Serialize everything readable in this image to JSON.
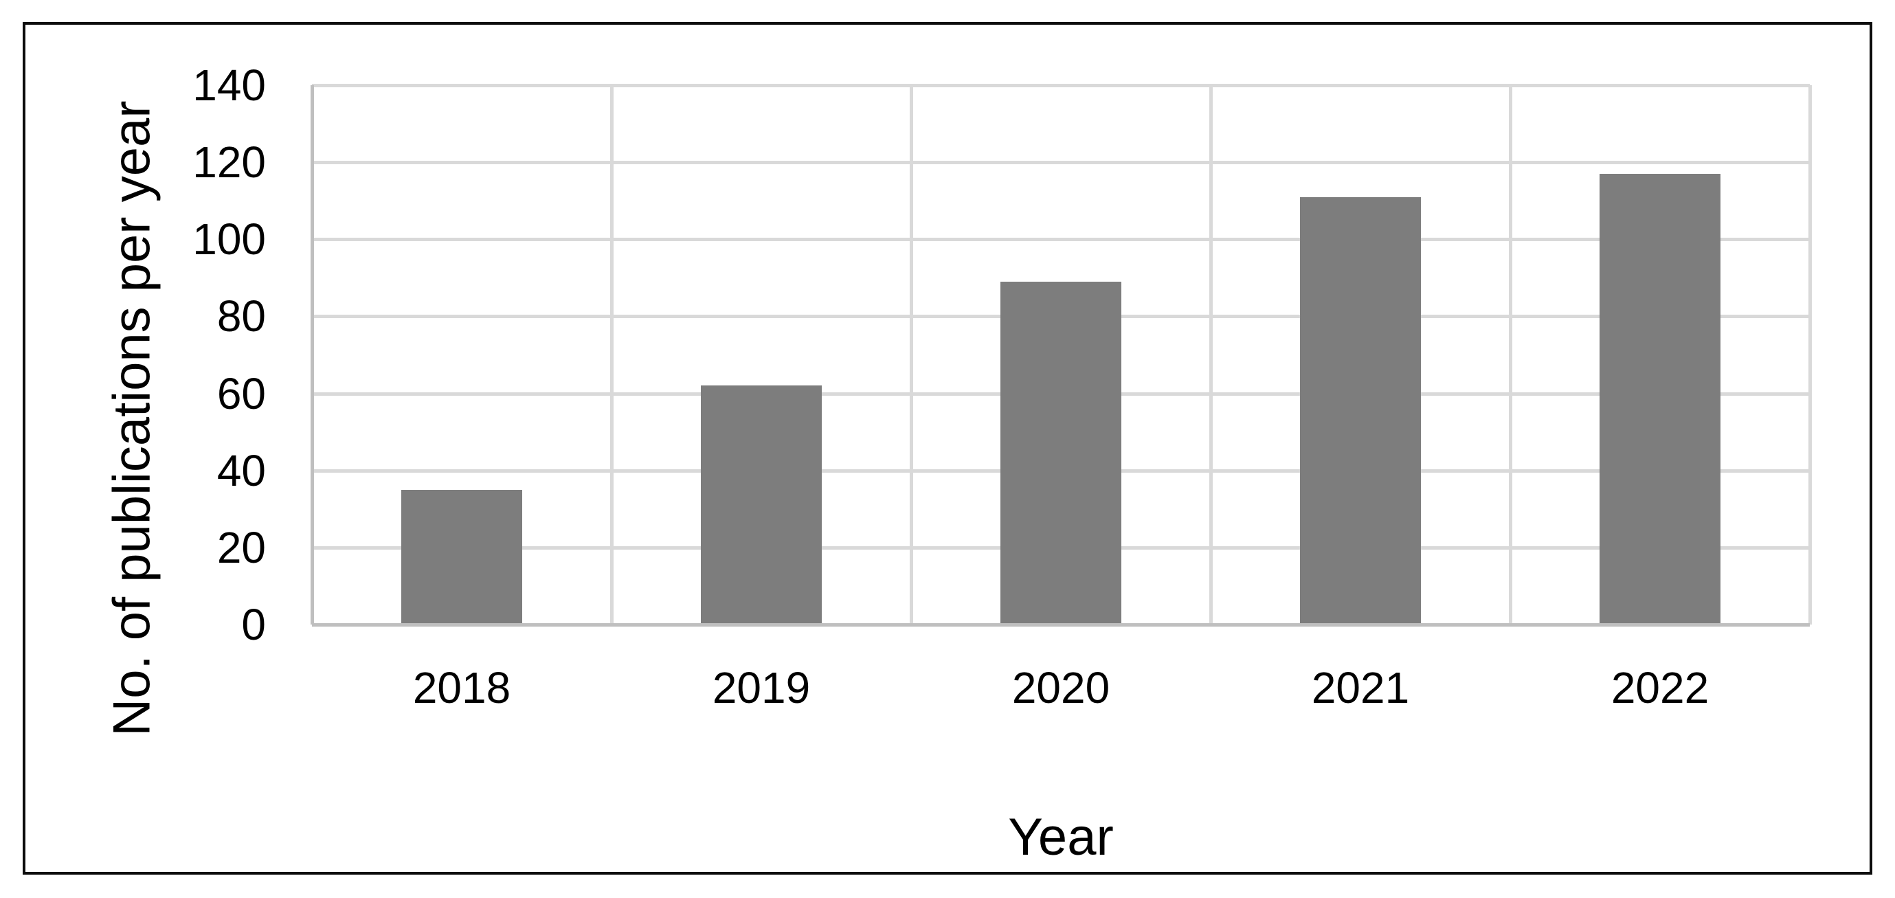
{
  "figure": {
    "background_color": "#ffffff",
    "border_color": "#0d0d0d",
    "text_color": "#000000"
  },
  "chart_data": {
    "type": "bar",
    "title": "",
    "categories": [
      "2018",
      "2019",
      "2020",
      "2021",
      "2022"
    ],
    "values": [
      35,
      62,
      89,
      111,
      117
    ],
    "xlabel": "Year",
    "ylabel": "No. of publications per year",
    "ylim": [
      0,
      140
    ],
    "yticks": [
      0,
      20,
      40,
      60,
      80,
      100,
      120,
      140
    ],
    "grid": true,
    "legend_position": "none",
    "bar_color": "#7d7d7d",
    "gridline_color": "#d9d9d9",
    "axis_line_color": "#bfbfbf"
  }
}
